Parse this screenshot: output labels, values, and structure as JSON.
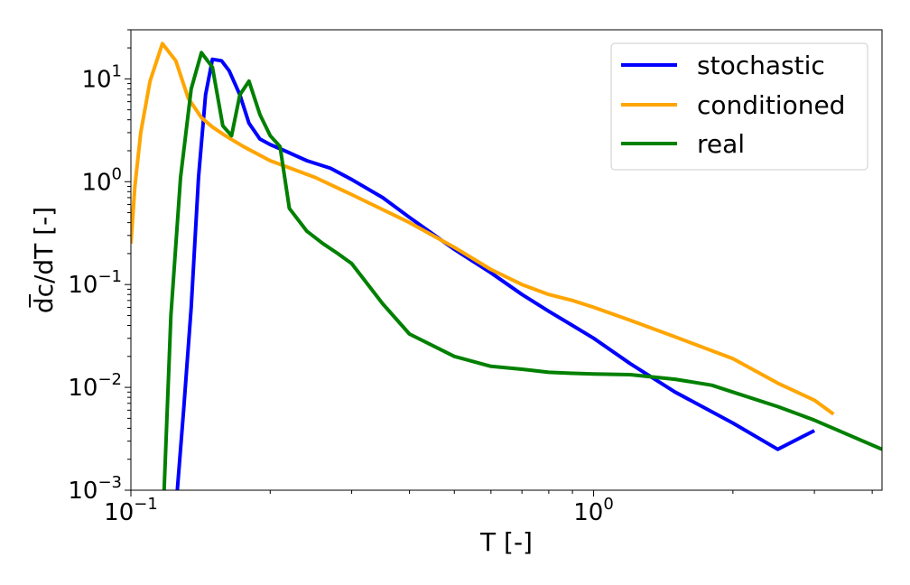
{
  "chart_data": {
    "type": "line",
    "xlabel": "T [-]",
    "ylabel": "d̅c/dT [-]",
    "xscale": "log",
    "yscale": "log",
    "xlim": [
      0.1,
      4.2
    ],
    "ylim": [
      0.001,
      30
    ],
    "grid": false,
    "legend_position": "top-right",
    "x_ticks": [
      {
        "value": 0.1,
        "label": "10",
        "exp": "−1"
      },
      {
        "value": 1.0,
        "label": "10",
        "exp": "0"
      }
    ],
    "y_ticks": [
      {
        "value": 0.001,
        "label": "10",
        "exp": "−3"
      },
      {
        "value": 0.01,
        "label": "10",
        "exp": "−2"
      },
      {
        "value": 0.1,
        "label": "10",
        "exp": "−1"
      },
      {
        "value": 1.0,
        "label": "10",
        "exp": "0"
      },
      {
        "value": 10.0,
        "label": "10",
        "exp": "1"
      }
    ],
    "series": [
      {
        "name": "stochastic",
        "color": "#0000ff",
        "x": [
          0.126,
          0.13,
          0.135,
          0.14,
          0.145,
          0.15,
          0.157,
          0.163,
          0.172,
          0.18,
          0.19,
          0.2,
          0.215,
          0.24,
          0.27,
          0.3,
          0.35,
          0.4,
          0.5,
          0.6,
          0.7,
          0.8,
          0.9,
          1.0,
          1.2,
          1.5,
          2.0,
          2.5,
          3.0
        ],
        "y": [
          0.001,
          0.006,
          0.06,
          1.1,
          7.0,
          15.5,
          15.0,
          12.0,
          7.0,
          3.7,
          2.6,
          2.3,
          2.0,
          1.6,
          1.35,
          1.05,
          0.7,
          0.45,
          0.22,
          0.13,
          0.08,
          0.055,
          0.04,
          0.03,
          0.017,
          0.009,
          0.0045,
          0.0025,
          0.0038
        ]
      },
      {
        "name": "conditioned",
        "color": "#ffa500",
        "x": [
          0.1,
          0.102,
          0.105,
          0.11,
          0.117,
          0.125,
          0.133,
          0.142,
          0.15,
          0.16,
          0.175,
          0.2,
          0.25,
          0.3,
          0.4,
          0.5,
          0.6,
          0.7,
          0.8,
          0.9,
          1.0,
          1.2,
          1.5,
          2.0,
          2.5,
          3.0,
          3.3
        ],
        "y": [
          0.25,
          0.9,
          3.0,
          9.5,
          22.0,
          15.0,
          6.5,
          4.2,
          3.4,
          2.8,
          2.2,
          1.6,
          1.1,
          0.75,
          0.4,
          0.23,
          0.14,
          0.1,
          0.08,
          0.07,
          0.06,
          0.045,
          0.031,
          0.019,
          0.011,
          0.0075,
          0.0055
        ]
      },
      {
        "name": "real",
        "color": "#008000",
        "x": [
          0.118,
          0.122,
          0.128,
          0.135,
          0.142,
          0.15,
          0.158,
          0.165,
          0.172,
          0.18,
          0.19,
          0.2,
          0.21,
          0.22,
          0.24,
          0.26,
          0.28,
          0.3,
          0.32,
          0.35,
          0.4,
          0.5,
          0.6,
          0.7,
          0.8,
          0.9,
          1.0,
          1.2,
          1.5,
          1.8,
          2.0,
          2.5,
          3.0,
          4.2
        ],
        "y": [
          0.001,
          0.05,
          1.1,
          8.0,
          18.0,
          13.0,
          3.5,
          2.8,
          7.0,
          9.5,
          4.5,
          2.8,
          2.2,
          0.55,
          0.33,
          0.25,
          0.2,
          0.16,
          0.11,
          0.065,
          0.033,
          0.02,
          0.016,
          0.015,
          0.014,
          0.0137,
          0.0135,
          0.0133,
          0.012,
          0.0105,
          0.009,
          0.0065,
          0.0048,
          0.0025
        ]
      }
    ]
  }
}
